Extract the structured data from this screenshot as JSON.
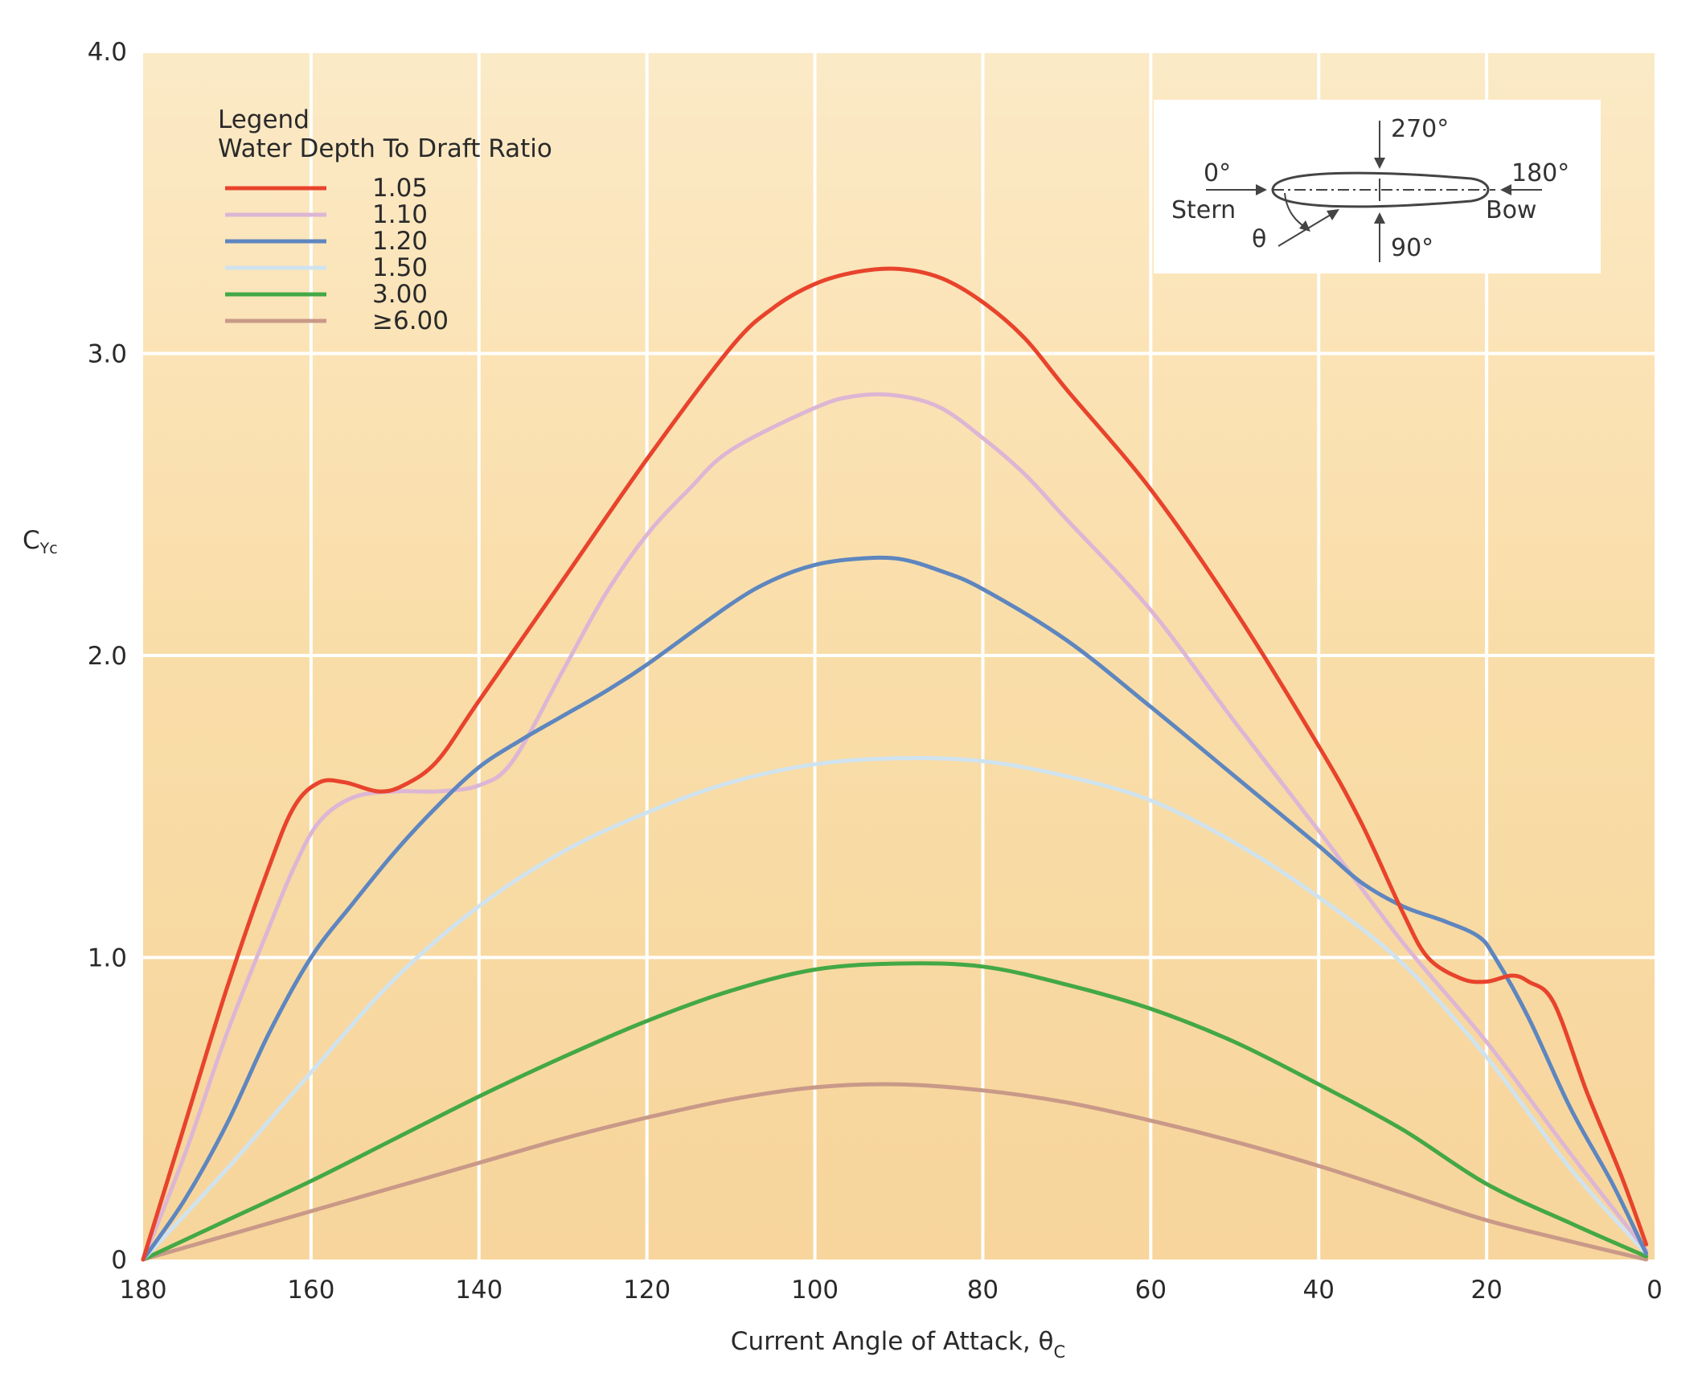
{
  "chart_data": {
    "type": "line",
    "title": "",
    "xlabel": "Current Angle of Attack, θ",
    "xlabel_subscript": "C",
    "ylabel": "C",
    "ylabel_subscript": "Yc",
    "xlim": [
      180,
      0
    ],
    "ylim": [
      0,
      4.0
    ],
    "xticks": [
      180,
      160,
      140,
      120,
      100,
      80,
      60,
      40,
      20,
      0
    ],
    "xtick_labels": [
      "180",
      "160",
      "140",
      "120",
      "100",
      "80",
      "60",
      "40",
      "20",
      "0"
    ],
    "yticks": [
      0,
      1.0,
      2.0,
      3.0,
      4.0
    ],
    "ytick_labels": [
      "0",
      "1.0",
      "2.0",
      "3.0",
      "4.0"
    ],
    "grid": true,
    "legend": {
      "title_line1": "Legend",
      "title_line2": "Water Depth To Draft Ratio",
      "placement": "top-left"
    },
    "series": [
      {
        "name": "1.05",
        "color": "#e8432c",
        "points": [
          [
            180,
            0
          ],
          [
            175,
            0.45
          ],
          [
            170,
            0.9
          ],
          [
            165,
            1.3
          ],
          [
            162,
            1.5
          ],
          [
            159,
            1.58
          ],
          [
            156,
            1.58
          ],
          [
            152,
            1.55
          ],
          [
            149,
            1.57
          ],
          [
            145,
            1.65
          ],
          [
            140,
            1.85
          ],
          [
            130,
            2.25
          ],
          [
            120,
            2.65
          ],
          [
            110,
            3.02
          ],
          [
            105,
            3.15
          ],
          [
            100,
            3.23
          ],
          [
            95,
            3.27
          ],
          [
            90,
            3.28
          ],
          [
            85,
            3.25
          ],
          [
            80,
            3.17
          ],
          [
            75,
            3.05
          ],
          [
            70,
            2.88
          ],
          [
            60,
            2.55
          ],
          [
            50,
            2.15
          ],
          [
            40,
            1.7
          ],
          [
            35,
            1.45
          ],
          [
            30,
            1.15
          ],
          [
            27,
            1.0
          ],
          [
            23,
            0.93
          ],
          [
            20,
            0.92
          ],
          [
            17,
            0.94
          ],
          [
            15,
            0.92
          ],
          [
            12,
            0.85
          ],
          [
            8,
            0.55
          ],
          [
            4,
            0.28
          ],
          [
            1,
            0.05
          ]
        ]
      },
      {
        "name": "1.10",
        "color": "#dcb6d4",
        "points": [
          [
            180,
            0
          ],
          [
            175,
            0.35
          ],
          [
            170,
            0.75
          ],
          [
            165,
            1.1
          ],
          [
            162,
            1.3
          ],
          [
            159,
            1.45
          ],
          [
            155,
            1.53
          ],
          [
            150,
            1.55
          ],
          [
            145,
            1.55
          ],
          [
            140,
            1.57
          ],
          [
            136,
            1.65
          ],
          [
            130,
            1.95
          ],
          [
            125,
            2.2
          ],
          [
            120,
            2.4
          ],
          [
            115,
            2.55
          ],
          [
            110,
            2.68
          ],
          [
            100,
            2.82
          ],
          [
            95,
            2.86
          ],
          [
            90,
            2.86
          ],
          [
            85,
            2.82
          ],
          [
            80,
            2.72
          ],
          [
            75,
            2.6
          ],
          [
            70,
            2.45
          ],
          [
            60,
            2.15
          ],
          [
            50,
            1.78
          ],
          [
            40,
            1.42
          ],
          [
            30,
            1.05
          ],
          [
            20,
            0.72
          ],
          [
            10,
            0.35
          ],
          [
            1,
            0.03
          ]
        ]
      },
      {
        "name": "1.20",
        "color": "#5e86bf",
        "points": [
          [
            180,
            0
          ],
          [
            175,
            0.2
          ],
          [
            170,
            0.45
          ],
          [
            165,
            0.75
          ],
          [
            160,
            1.0
          ],
          [
            155,
            1.18
          ],
          [
            150,
            1.35
          ],
          [
            145,
            1.5
          ],
          [
            140,
            1.63
          ],
          [
            135,
            1.72
          ],
          [
            130,
            1.8
          ],
          [
            125,
            1.88
          ],
          [
            120,
            1.97
          ],
          [
            110,
            2.17
          ],
          [
            105,
            2.25
          ],
          [
            100,
            2.3
          ],
          [
            95,
            2.32
          ],
          [
            90,
            2.32
          ],
          [
            85,
            2.28
          ],
          [
            80,
            2.22
          ],
          [
            70,
            2.05
          ],
          [
            60,
            1.83
          ],
          [
            50,
            1.6
          ],
          [
            40,
            1.37
          ],
          [
            35,
            1.25
          ],
          [
            30,
            1.17
          ],
          [
            25,
            1.12
          ],
          [
            21,
            1.07
          ],
          [
            19,
            1.0
          ],
          [
            15,
            0.8
          ],
          [
            10,
            0.5
          ],
          [
            5,
            0.25
          ],
          [
            1,
            0.02
          ]
        ]
      },
      {
        "name": "1.50",
        "color": "#cfe3ef",
        "points": [
          [
            180,
            0
          ],
          [
            170,
            0.3
          ],
          [
            160,
            0.62
          ],
          [
            150,
            0.93
          ],
          [
            140,
            1.17
          ],
          [
            130,
            1.35
          ],
          [
            120,
            1.48
          ],
          [
            110,
            1.58
          ],
          [
            100,
            1.64
          ],
          [
            90,
            1.66
          ],
          [
            80,
            1.65
          ],
          [
            70,
            1.6
          ],
          [
            60,
            1.52
          ],
          [
            50,
            1.38
          ],
          [
            40,
            1.2
          ],
          [
            30,
            0.98
          ],
          [
            20,
            0.67
          ],
          [
            10,
            0.3
          ],
          [
            1,
            0.02
          ]
        ]
      },
      {
        "name": "3.00",
        "color": "#43a845",
        "points": [
          [
            180,
            0
          ],
          [
            170,
            0.13
          ],
          [
            160,
            0.26
          ],
          [
            150,
            0.4
          ],
          [
            140,
            0.54
          ],
          [
            130,
            0.67
          ],
          [
            120,
            0.79
          ],
          [
            110,
            0.89
          ],
          [
            100,
            0.96
          ],
          [
            90,
            0.98
          ],
          [
            80,
            0.97
          ],
          [
            70,
            0.91
          ],
          [
            60,
            0.83
          ],
          [
            50,
            0.72
          ],
          [
            40,
            0.58
          ],
          [
            30,
            0.43
          ],
          [
            20,
            0.25
          ],
          [
            10,
            0.12
          ],
          [
            1,
            0.01
          ]
        ]
      },
      {
        "name": "≥6.00",
        "color": "#c99988",
        "points": [
          [
            180,
            0
          ],
          [
            170,
            0.08
          ],
          [
            160,
            0.16
          ],
          [
            150,
            0.24
          ],
          [
            140,
            0.32
          ],
          [
            130,
            0.4
          ],
          [
            120,
            0.47
          ],
          [
            110,
            0.53
          ],
          [
            100,
            0.57
          ],
          [
            90,
            0.58
          ],
          [
            80,
            0.56
          ],
          [
            70,
            0.52
          ],
          [
            60,
            0.46
          ],
          [
            50,
            0.39
          ],
          [
            40,
            0.31
          ],
          [
            30,
            0.22
          ],
          [
            20,
            0.13
          ],
          [
            10,
            0.06
          ],
          [
            1,
            0.0
          ]
        ]
      }
    ],
    "inset": {
      "label_270": "270°",
      "label_0": "0°",
      "label_180": "180°",
      "label_stern": "Stern",
      "label_bow": "Bow",
      "label_theta": "θ",
      "label_90": "90°"
    }
  }
}
